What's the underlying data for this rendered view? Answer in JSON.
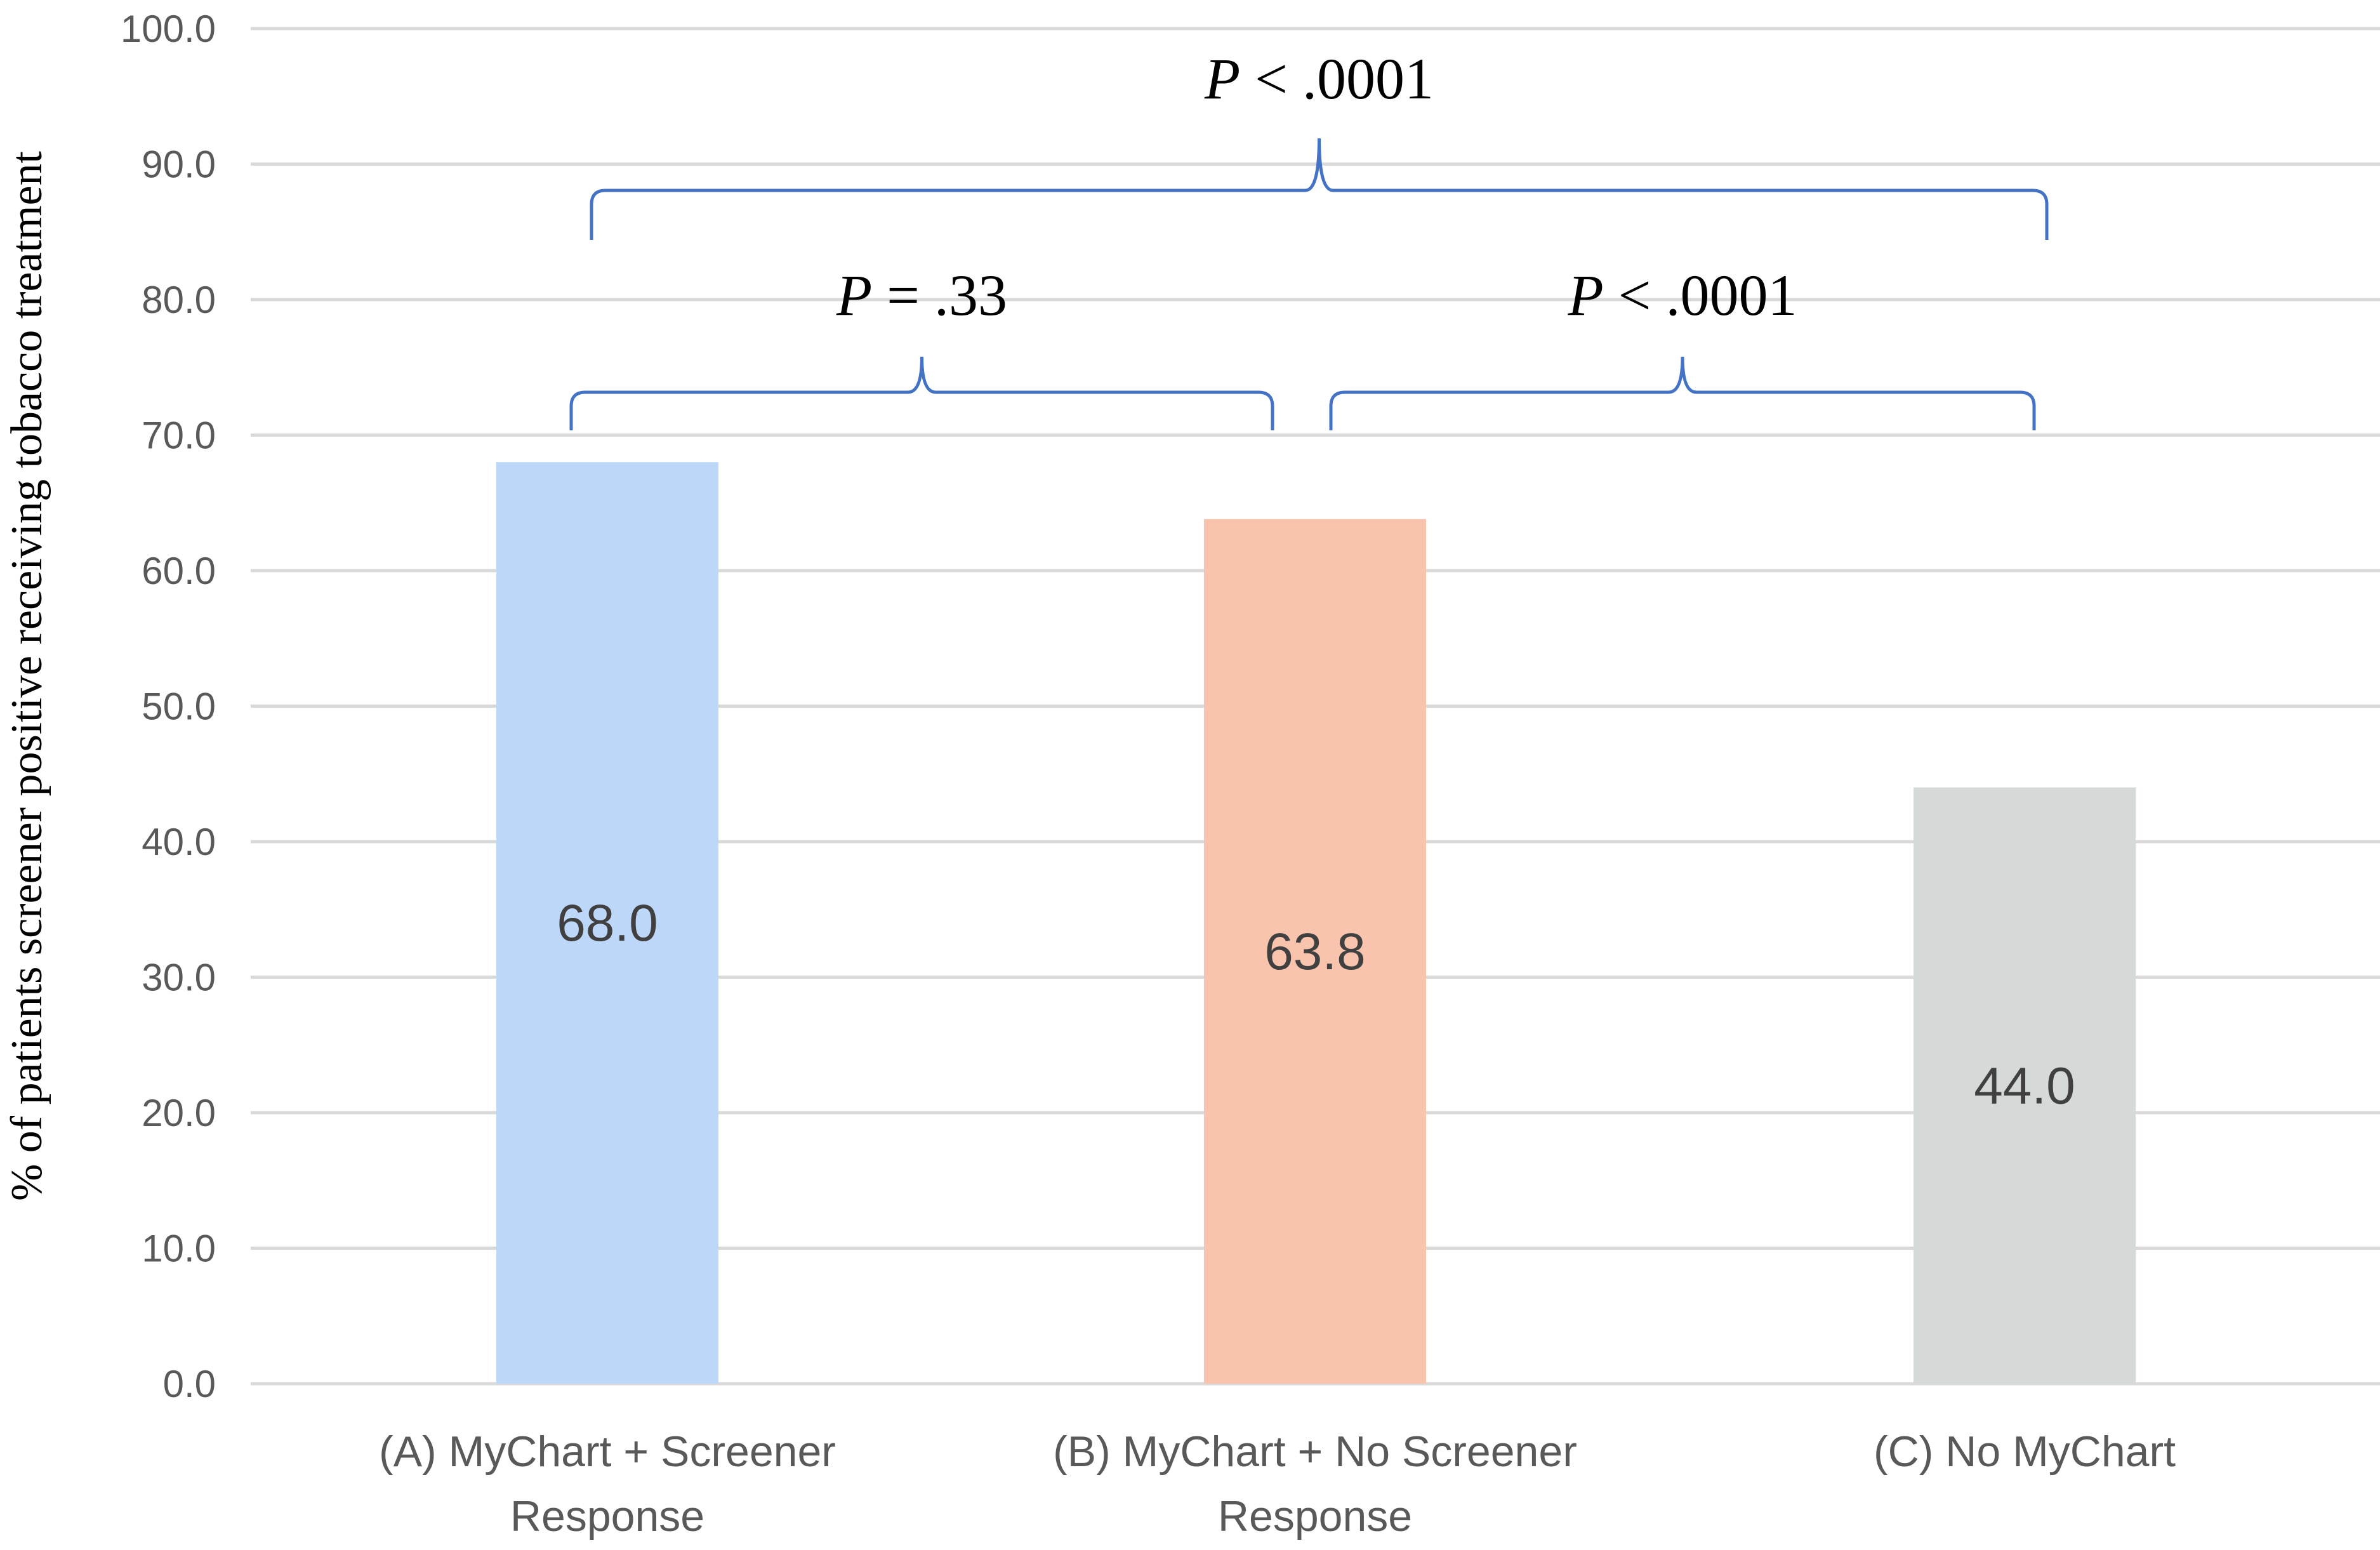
{
  "chart_data": {
    "type": "bar",
    "categories": [
      [
        "(A) MyChart + Screener",
        "Response"
      ],
      [
        "(B) MyChart + No Screener",
        "Response"
      ],
      [
        "(C) No MyChart"
      ]
    ],
    "values": [
      68.0,
      63.8,
      44.0
    ],
    "data_labels": [
      "68.0",
      "63.8",
      "44.0"
    ],
    "bar_colors": [
      "#bdd7f9",
      "#f9c4ae",
      "#d5d9d8"
    ],
    "ylabel": "% of  patients screener positive receiving  tobacco treatment",
    "ylim": [
      0,
      100
    ],
    "yticks": [
      "0.0",
      "10.0",
      "20.0",
      "30.0",
      "40.0",
      "50.0",
      "60.0",
      "70.0",
      "80.0",
      "90.0",
      "100.0"
    ],
    "grid": true,
    "annotations": [
      {
        "from": 0,
        "to": 2,
        "level": 2,
        "italic": "P",
        "rest": " < .0001"
      },
      {
        "from": 0,
        "to": 1,
        "level": 1,
        "italic": "P",
        "rest": " = .33"
      },
      {
        "from": 1,
        "to": 2,
        "level": 1,
        "italic": "P",
        "rest": " < .0001"
      }
    ],
    "bracket_color": "#4472c4",
    "gridline_color": "#d9d9d9"
  }
}
